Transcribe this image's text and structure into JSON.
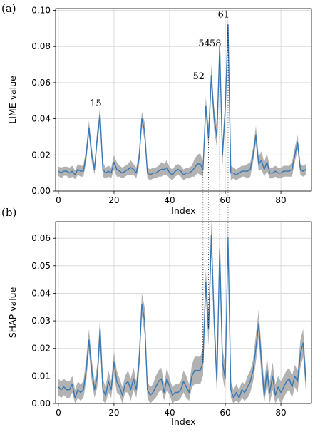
{
  "chart_data": [
    {
      "type": "line",
      "panel_label": "(a)",
      "xlabel": "Index",
      "ylabel": "LIME value",
      "xlim": [
        -1,
        91
      ],
      "ylim": [
        0,
        0.101
      ],
      "xticks": [
        0,
        20,
        40,
        60,
        80
      ],
      "yticks": [
        0.0,
        0.02,
        0.04,
        0.06,
        0.08,
        0.1
      ],
      "ytick_labels": [
        "0.00",
        "0.02",
        "0.04",
        "0.06",
        "0.08",
        "0.10"
      ],
      "grid": true,
      "series": [
        {
          "x": [
            0,
            1,
            2,
            3,
            4,
            5,
            6,
            7,
            8,
            9,
            10,
            11,
            12,
            13,
            14,
            15,
            16,
            17,
            18,
            19,
            20,
            21,
            22,
            23,
            24,
            25,
            26,
            27,
            28,
            29,
            30,
            31,
            32,
            33,
            34,
            35,
            36,
            37,
            38,
            39,
            40,
            41,
            42,
            43,
            44,
            45,
            46,
            47,
            48,
            49,
            50,
            51,
            52,
            53,
            54,
            55,
            56,
            57,
            58,
            59,
            60,
            61,
            62,
            63,
            64,
            65,
            66,
            67,
            68,
            69,
            70,
            71,
            72,
            73,
            74,
            75,
            76,
            77,
            78,
            79,
            80,
            81,
            82,
            83,
            84,
            85,
            86,
            87,
            88,
            89
          ],
          "mean": [
            0.011,
            0.01,
            0.011,
            0.011,
            0.01,
            0.011,
            0.009,
            0.012,
            0.011,
            0.011,
            0.02,
            0.035,
            0.02,
            0.012,
            0.03,
            0.042,
            0.012,
            0.01,
            0.011,
            0.01,
            0.016,
            0.012,
            0.011,
            0.01,
            0.011,
            0.012,
            0.013,
            0.012,
            0.01,
            0.018,
            0.04,
            0.033,
            0.01,
            0.009,
            0.01,
            0.01,
            0.011,
            0.012,
            0.012,
            0.013,
            0.01,
            0.009,
            0.011,
            0.012,
            0.011,
            0.009,
            0.01,
            0.01,
            0.011,
            0.013,
            0.015,
            0.015,
            0.012,
            0.047,
            0.03,
            0.064,
            0.04,
            0.03,
            0.08,
            0.02,
            0.045,
            0.092,
            0.01,
            0.01,
            0.009,
            0.01,
            0.011,
            0.011,
            0.011,
            0.012,
            0.02,
            0.031,
            0.015,
            0.017,
            0.012,
            0.016,
            0.01,
            0.01,
            0.011,
            0.01,
            0.01,
            0.011,
            0.011,
            0.011,
            0.012,
            0.02,
            0.027,
            0.012,
            0.011,
            0.012
          ],
          "band": [
            0.0025,
            0.003,
            0.0025,
            0.0025,
            0.003,
            0.003,
            0.0025,
            0.003,
            0.003,
            0.003,
            0.004,
            0.004,
            0.004,
            0.003,
            0.004,
            0.005,
            0.004,
            0.003,
            0.003,
            0.003,
            0.004,
            0.004,
            0.003,
            0.003,
            0.003,
            0.003,
            0.004,
            0.003,
            0.003,
            0.004,
            0.004,
            0.005,
            0.003,
            0.003,
            0.003,
            0.003,
            0.003,
            0.004,
            0.003,
            0.004,
            0.003,
            0.003,
            0.003,
            0.003,
            0.003,
            0.003,
            0.003,
            0.003,
            0.003,
            0.005,
            0.005,
            0.006,
            0.004,
            0.005,
            0.006,
            0.006,
            0.006,
            0.006,
            0.006,
            0.006,
            0.006,
            0.006,
            0.004,
            0.003,
            0.003,
            0.003,
            0.003,
            0.003,
            0.004,
            0.004,
            0.004,
            0.005,
            0.004,
            0.005,
            0.004,
            0.005,
            0.003,
            0.003,
            0.003,
            0.003,
            0.003,
            0.003,
            0.003,
            0.003,
            0.004,
            0.004,
            0.004,
            0.003,
            0.003,
            0.003
          ]
        }
      ],
      "annotations": [
        {
          "text": "15",
          "x": 15,
          "y": 0.047
        },
        {
          "text": "52",
          "x": 52,
          "y": 0.062
        },
        {
          "text": "54",
          "x": 54,
          "y": 0.08
        },
        {
          "text": "58",
          "x": 58,
          "y": 0.08
        },
        {
          "text": "61",
          "x": 61,
          "y": 0.096
        }
      ]
    },
    {
      "type": "line",
      "panel_label": "(b)",
      "xlabel": "Index",
      "ylabel": "SHAP value",
      "xlim": [
        -1,
        91
      ],
      "ylim": [
        0,
        0.066
      ],
      "xticks": [
        0,
        20,
        40,
        60,
        80
      ],
      "yticks": [
        0.0,
        0.01,
        0.02,
        0.03,
        0.04,
        0.05,
        0.06
      ],
      "ytick_labels": [
        "0.00",
        "0.01",
        "0.02",
        "0.03",
        "0.04",
        "0.05",
        "0.06"
      ],
      "grid": true,
      "series": [
        {
          "x": [
            0,
            1,
            2,
            3,
            4,
            5,
            6,
            7,
            8,
            9,
            10,
            11,
            12,
            13,
            14,
            15,
            16,
            17,
            18,
            19,
            20,
            21,
            22,
            23,
            24,
            25,
            26,
            27,
            28,
            29,
            30,
            31,
            32,
            33,
            34,
            35,
            36,
            37,
            38,
            39,
            40,
            41,
            42,
            43,
            44,
            45,
            46,
            47,
            48,
            49,
            50,
            51,
            52,
            53,
            54,
            55,
            56,
            57,
            58,
            59,
            60,
            61,
            62,
            63,
            64,
            65,
            66,
            67,
            68,
            69,
            70,
            71,
            72,
            73,
            74,
            75,
            76,
            77,
            78,
            79,
            80,
            81,
            82,
            83,
            84,
            85,
            86,
            87,
            88,
            89
          ],
          "mean": [
            0.006,
            0.005,
            0.006,
            0.005,
            0.005,
            0.007,
            0.002,
            0.005,
            0.004,
            0.005,
            0.012,
            0.023,
            0.012,
            0.005,
            0.01,
            0.027,
            0.005,
            0.003,
            0.008,
            0.005,
            0.015,
            0.008,
            0.006,
            0.003,
            0.007,
            0.008,
            0.005,
            0.009,
            0.005,
            0.015,
            0.036,
            0.03,
            0.005,
            0.003,
            0.004,
            0.006,
            0.008,
            0.009,
            0.004,
            0.009,
            0.006,
            0.003,
            0.004,
            0.004,
            0.005,
            0.008,
            0.006,
            0.004,
            0.01,
            0.012,
            0.012,
            0.012,
            0.015,
            0.044,
            0.027,
            0.061,
            0.03,
            0.008,
            0.056,
            0.015,
            0.009,
            0.06,
            0.005,
            0.002,
            0.004,
            0.002,
            0.005,
            0.004,
            0.006,
            0.008,
            0.012,
            0.02,
            0.029,
            0.015,
            0.003,
            0.012,
            0.004,
            0.01,
            0.003,
            0.006,
            0.004,
            0.006,
            0.008,
            0.009,
            0.006,
            0.01,
            0.008,
            0.018,
            0.022,
            0.008
          ],
          "band": [
            0.003,
            0.003,
            0.003,
            0.003,
            0.003,
            0.003,
            0.003,
            0.003,
            0.003,
            0.003,
            0.004,
            0.004,
            0.004,
            0.003,
            0.004,
            0.005,
            0.004,
            0.003,
            0.004,
            0.003,
            0.004,
            0.004,
            0.003,
            0.003,
            0.003,
            0.004,
            0.004,
            0.004,
            0.003,
            0.004,
            0.004,
            0.005,
            0.003,
            0.003,
            0.003,
            0.004,
            0.004,
            0.004,
            0.003,
            0.004,
            0.003,
            0.003,
            0.003,
            0.003,
            0.003,
            0.004,
            0.004,
            0.003,
            0.004,
            0.005,
            0.005,
            0.005,
            0.005,
            0.005,
            0.006,
            0.006,
            0.006,
            0.005,
            0.006,
            0.005,
            0.005,
            0.006,
            0.003,
            0.003,
            0.003,
            0.003,
            0.003,
            0.003,
            0.004,
            0.004,
            0.004,
            0.005,
            0.005,
            0.005,
            0.004,
            0.005,
            0.004,
            0.005,
            0.004,
            0.004,
            0.004,
            0.004,
            0.004,
            0.004,
            0.004,
            0.004,
            0.004,
            0.005,
            0.005,
            0.004
          ]
        }
      ]
    }
  ],
  "connectors": [
    15,
    52,
    54,
    58,
    61
  ],
  "colors": {
    "line": "#3a78b4",
    "band": "#b2b2b2",
    "grid": "#d3d3d3",
    "connector": "#000000"
  }
}
